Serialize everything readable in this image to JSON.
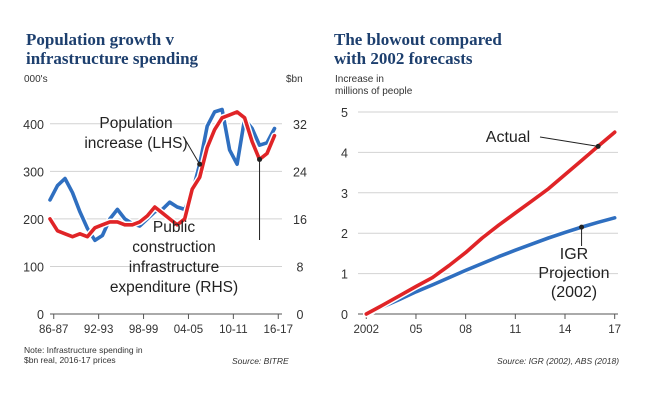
{
  "chart_data": [
    {
      "type": "line",
      "title_line1": "Population growth v",
      "title_line2": "infrastructure spending",
      "left_unit": "000's",
      "right_unit": "$bn",
      "ylim_left": [
        0,
        450
      ],
      "ylim_right": [
        0,
        36
      ],
      "left_ticks": [
        "0",
        "100",
        "200",
        "300",
        "400"
      ],
      "right_ticks": [
        "0",
        "8",
        "16",
        "24",
        "32"
      ],
      "x_ticks": [
        "86-87",
        "92-93",
        "98-99",
        "04-05",
        "10-11",
        "16-17"
      ],
      "x_range": [
        1986,
        2017
      ],
      "series": [
        {
          "name": "Population increase (LHS)",
          "axis": "left",
          "color": "#2f6fc0",
          "x": [
            1986,
            1987,
            1988,
            1989,
            1990,
            1991,
            1992,
            1993,
            1994,
            1995,
            1996,
            1997,
            1998,
            1999,
            2000,
            2001,
            2002,
            2003,
            2004,
            2005,
            2006,
            2007,
            2008,
            2009,
            2010,
            2011,
            2012,
            2013,
            2014,
            2015,
            2016
          ],
          "values": [
            240,
            270,
            285,
            255,
            215,
            180,
            155,
            165,
            200,
            220,
            200,
            190,
            185,
            200,
            215,
            220,
            235,
            225,
            220,
            255,
            315,
            395,
            425,
            430,
            345,
            315,
            410,
            390,
            355,
            360,
            390
          ]
        },
        {
          "name": "Public construction infrastructure expenditure (RHS)",
          "axis": "right",
          "color": "#e02427",
          "x": [
            1986,
            1987,
            1988,
            1989,
            1990,
            1991,
            1992,
            1993,
            1994,
            1995,
            1996,
            1997,
            1998,
            1999,
            2000,
            2001,
            2002,
            2003,
            2004,
            2005,
            2006,
            2007,
            2008,
            2009,
            2010,
            2011,
            2012,
            2013,
            2014,
            2015,
            2016
          ],
          "values": [
            16,
            14,
            13.5,
            13,
            13.5,
            13,
            14.5,
            15,
            15.5,
            15.5,
            15,
            15,
            15.5,
            16.5,
            18,
            17,
            16,
            15,
            16,
            21,
            23,
            28,
            31,
            33,
            33.5,
            34,
            33,
            29,
            26,
            27,
            30
          ]
        }
      ],
      "labels": {
        "population": [
          "Population",
          "increase (LHS)"
        ],
        "construction": [
          "Public",
          "construction",
          "infrastructure",
          "expenditure (RHS)"
        ]
      },
      "note": [
        "Note: Infrastructure spending in",
        "$bn real, 2016-17 prices"
      ],
      "source": "Source: BITRE"
    },
    {
      "type": "line",
      "title_line1": "The blowout compared",
      "title_line2": "with 2002 forecasts",
      "ylabel_line1": "Increase in",
      "ylabel_line2": "millions of people",
      "ylim": [
        0,
        5
      ],
      "y_ticks": [
        "0",
        "1",
        "2",
        "3",
        "4",
        "5"
      ],
      "x_ticks": [
        "2002",
        "05",
        "08",
        "11",
        "14",
        "17"
      ],
      "x_tick_values": [
        2002,
        2005,
        2008,
        2011,
        2014,
        2017
      ],
      "x_range": [
        2001.5,
        2017.2
      ],
      "series": [
        {
          "name": "Actual",
          "color": "#e02427",
          "x": [
            2002,
            2003,
            2004,
            2005,
            2006,
            2007,
            2008,
            2009,
            2010,
            2011,
            2012,
            2013,
            2014,
            2015,
            2016,
            2017
          ],
          "values": [
            0,
            0.22,
            0.45,
            0.68,
            0.9,
            1.2,
            1.52,
            1.88,
            2.2,
            2.5,
            2.8,
            3.1,
            3.45,
            3.8,
            4.15,
            4.5
          ]
        },
        {
          "name": "IGR Projection (2002)",
          "color": "#2f6fc0",
          "x": [
            2002,
            2003,
            2004,
            2005,
            2006,
            2007,
            2008,
            2009,
            2010,
            2011,
            2012,
            2013,
            2014,
            2015,
            2016,
            2017
          ],
          "values": [
            0,
            0.18,
            0.36,
            0.55,
            0.72,
            0.9,
            1.08,
            1.25,
            1.42,
            1.58,
            1.73,
            1.88,
            2.02,
            2.15,
            2.27,
            2.38
          ]
        }
      ],
      "labels": {
        "actual": "Actual",
        "igr": [
          "IGR",
          "Projection",
          "(2002)"
        ]
      },
      "source": "Source: IGR (2002), ABS (2018)"
    }
  ]
}
